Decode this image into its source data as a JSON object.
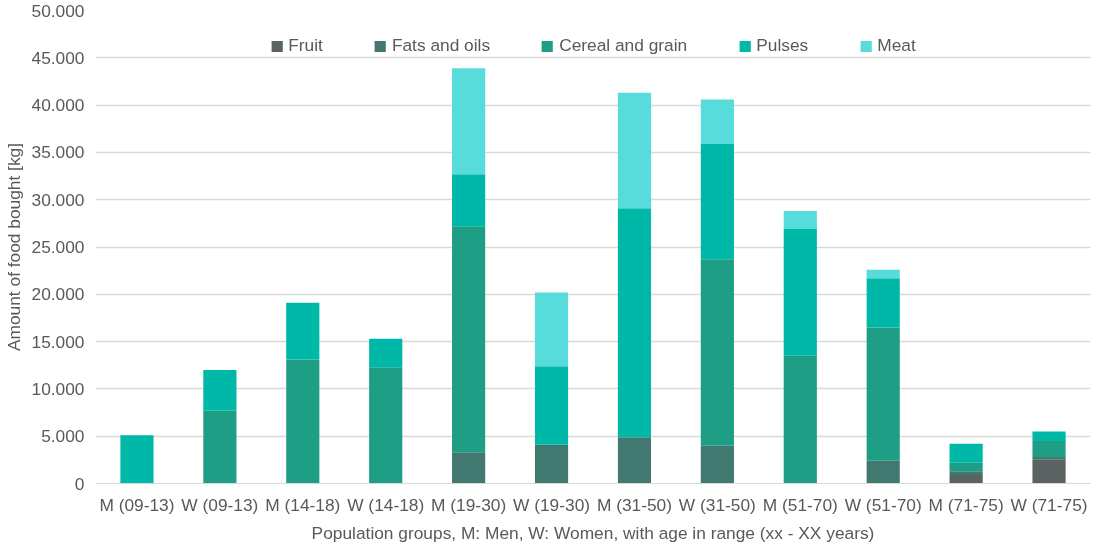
{
  "chart_data": {
    "type": "bar",
    "stacked": true,
    "xlabel": "Population groups, M: Men, W: Women, with age in range (xx - XX years)",
    "ylabel": "Amount of food bought [kg]",
    "categories": [
      "M (09-13)",
      "W (09-13)",
      "M (14-18)",
      "W (14-18)",
      "M (19-30)",
      "W (19-30)",
      "M (31-50)",
      "W (31-50)",
      "M (51-70)",
      "W (51-70)",
      "M (71-75)",
      "W (71-75)"
    ],
    "series": [
      {
        "name": "Fruit",
        "color": "#5a6361",
        "values": [
          null,
          null,
          null,
          null,
          null,
          null,
          null,
          null,
          null,
          null,
          900,
          2500
        ]
      },
      {
        "name": "Fats and oils",
        "color": "#417870",
        "values": [
          null,
          null,
          null,
          null,
          3300,
          4100,
          4900,
          4000,
          null,
          2400,
          400,
          300
        ]
      },
      {
        "name": "Cereal and grain",
        "color": "#1e9e84",
        "values": [
          null,
          7700,
          13100,
          12300,
          23900,
          null,
          null,
          19700,
          13500,
          14100,
          900,
          1700
        ]
      },
      {
        "name": "Pulses",
        "color": "#00b8a8",
        "values": [
          5100,
          4300,
          6000,
          3000,
          5500,
          8300,
          24200,
          12200,
          13400,
          5200,
          2000,
          1000
        ]
      },
      {
        "name": "Meat",
        "color": "#57dbdb",
        "values": [
          null,
          null,
          null,
          null,
          11200,
          7800,
          12200,
          4700,
          1900,
          900,
          null,
          null
        ]
      }
    ],
    "ylim": [
      0,
      50000
    ],
    "yticks": [
      {
        "value": 0,
        "label": "0"
      },
      {
        "value": 5000,
        "label": "5.000"
      },
      {
        "value": 10000,
        "label": "10.000"
      },
      {
        "value": 15000,
        "label": "15.000"
      },
      {
        "value": 20000,
        "label": "20.000"
      },
      {
        "value": 25000,
        "label": "25.000"
      },
      {
        "value": 30000,
        "label": "30.000"
      },
      {
        "value": 35000,
        "label": "35.000"
      },
      {
        "value": 40000,
        "label": "40.000"
      },
      {
        "value": 45000,
        "label": "45.000"
      },
      {
        "value": 50000,
        "label": "50.000"
      }
    ],
    "grid": "y",
    "legend": "top"
  }
}
